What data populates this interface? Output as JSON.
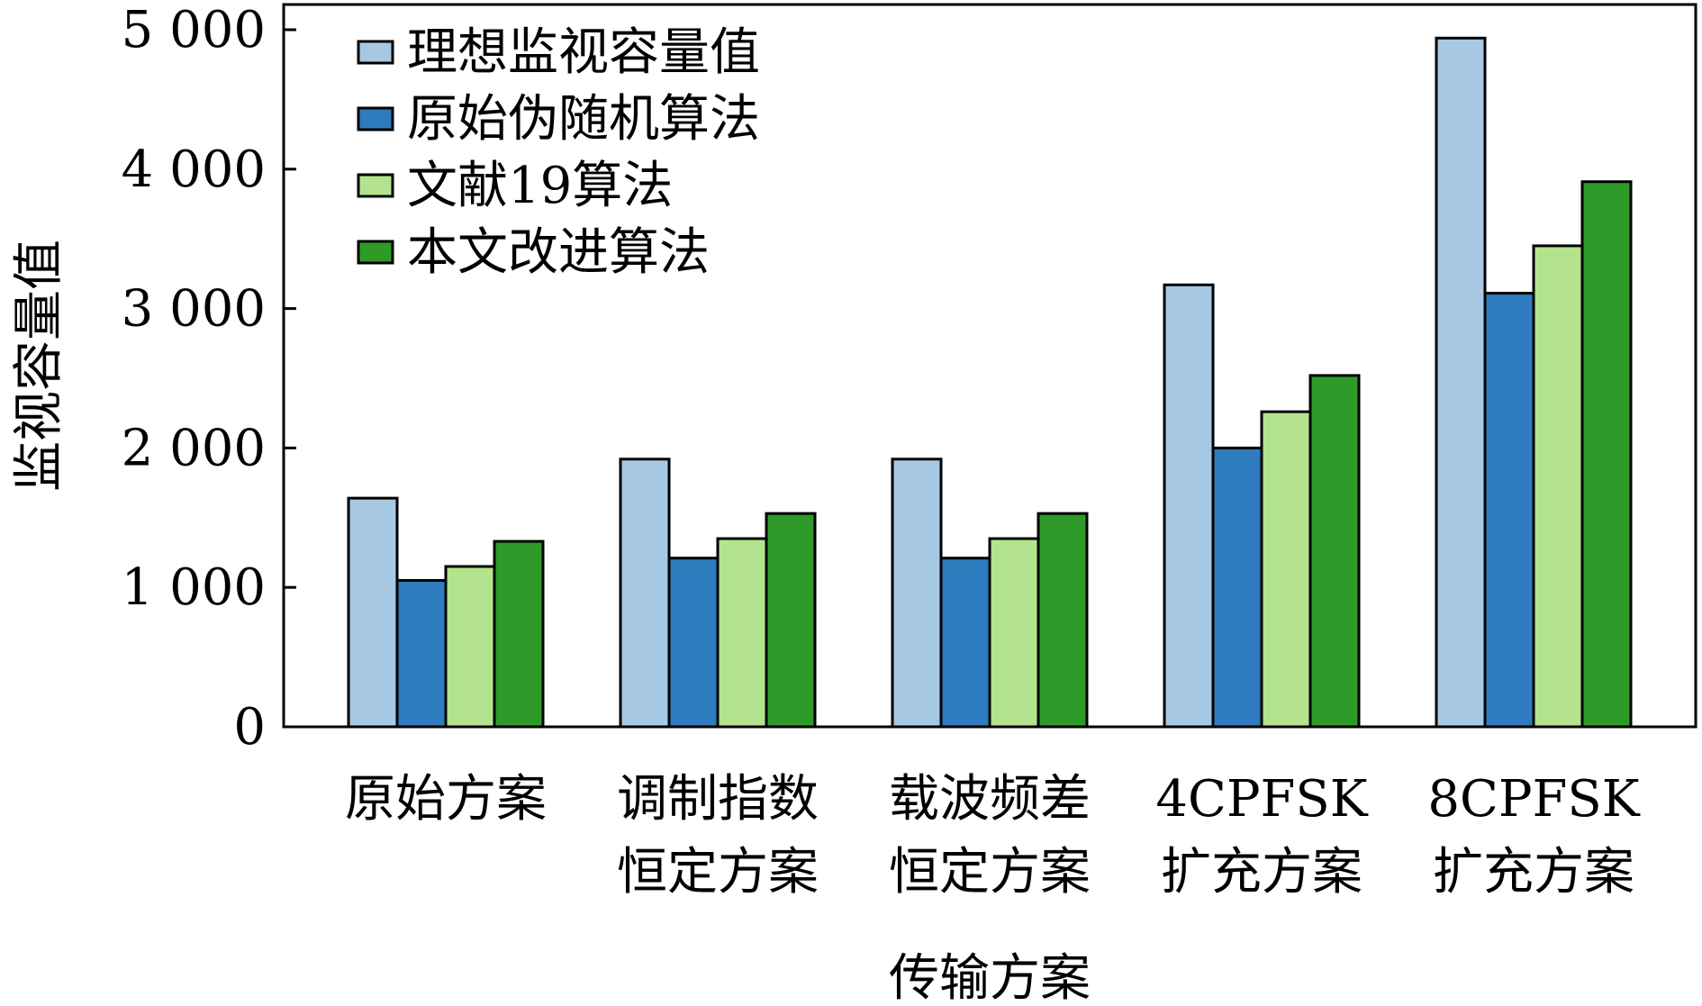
{
  "chart_data": {
    "type": "bar",
    "xlabel": "传输方案",
    "ylabel": "监视容量值",
    "ylim": [
      0,
      5000
    ],
    "yticks": [
      0,
      1000,
      2000,
      3000,
      4000,
      5000
    ],
    "ytick_labels": [
      "0",
      "1 000",
      "2 000",
      "3 000",
      "4 000",
      "5 000"
    ],
    "categories": [
      [
        "原始方案"
      ],
      [
        "调制指数",
        "恒定方案"
      ],
      [
        "载波频差",
        "恒定方案"
      ],
      [
        "4CPFSK",
        "扩充方案"
      ],
      [
        "8CPFSK",
        "扩充方案"
      ]
    ],
    "series": [
      {
        "name": "理想监视容量值",
        "color": "#a6c8e3",
        "values": [
          1640,
          1920,
          1920,
          3170,
          4940
        ]
      },
      {
        "name": "原始伪随机算法",
        "color": "#2e7bbd",
        "values": [
          1050,
          1210,
          1210,
          2000,
          3110
        ]
      },
      {
        "name": "文献19算法",
        "color": "#b3e48d",
        "values": [
          1150,
          1350,
          1350,
          2260,
          3450
        ]
      },
      {
        "name": "本文改进算法",
        "color": "#2f9a2a",
        "values": [
          1330,
          1530,
          1530,
          2520,
          3910
        ]
      }
    ],
    "legend": "top-left",
    "grid": false
  }
}
